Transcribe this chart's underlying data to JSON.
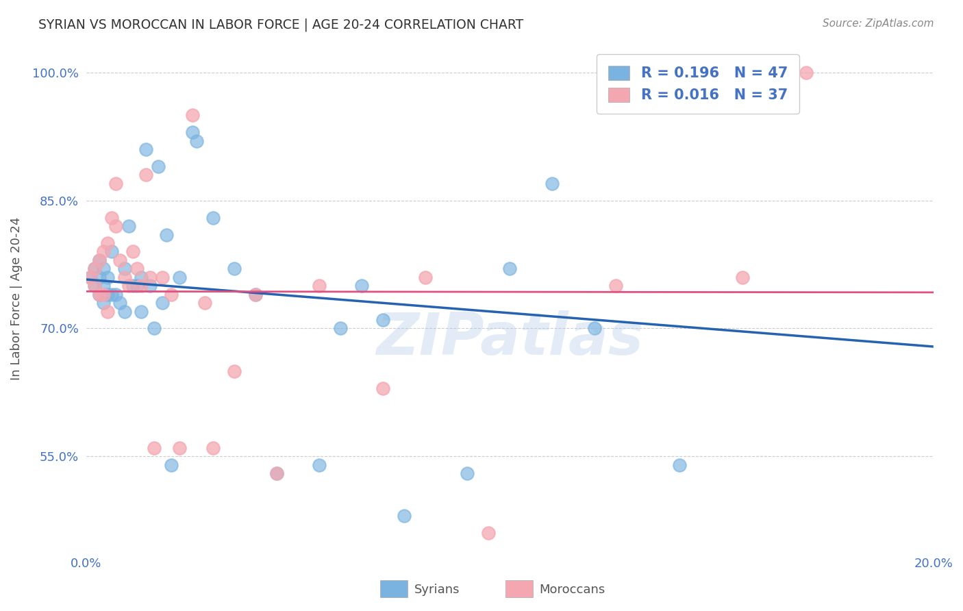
{
  "title": "SYRIAN VS MOROCCAN IN LABOR FORCE | AGE 20-24 CORRELATION CHART",
  "source": "Source: ZipAtlas.com",
  "xlabel": "",
  "ylabel": "In Labor Force | Age 20-24",
  "xlim": [
    0.0,
    0.2
  ],
  "ylim": [
    0.44,
    1.03
  ],
  "xticks": [
    0.0,
    0.04,
    0.08,
    0.12,
    0.16,
    0.2
  ],
  "xticklabels": [
    "0.0%",
    "",
    "",
    "",
    "",
    "20.0%"
  ],
  "yticks": [
    0.55,
    0.7,
    0.85,
    1.0
  ],
  "yticklabels": [
    "55.0%",
    "70.0%",
    "85.0%",
    "100.0%"
  ],
  "watermark": "ZIPatlas",
  "legend_entries": [
    {
      "label": "R = 0.196   N = 47",
      "color": "#7ab3e0"
    },
    {
      "label": "R = 0.016   N = 37",
      "color": "#f4a7b0"
    }
  ],
  "syrians_x": [
    0.001,
    0.002,
    0.002,
    0.003,
    0.003,
    0.003,
    0.004,
    0.004,
    0.004,
    0.005,
    0.005,
    0.006,
    0.006,
    0.007,
    0.008,
    0.009,
    0.009,
    0.01,
    0.011,
    0.012,
    0.013,
    0.013,
    0.014,
    0.015,
    0.016,
    0.017,
    0.018,
    0.019,
    0.02,
    0.022,
    0.025,
    0.026,
    0.03,
    0.035,
    0.04,
    0.045,
    0.055,
    0.06,
    0.065,
    0.07,
    0.075,
    0.09,
    0.1,
    0.11,
    0.12,
    0.14,
    0.155
  ],
  "syrians_y": [
    0.76,
    0.77,
    0.75,
    0.78,
    0.76,
    0.74,
    0.77,
    0.75,
    0.73,
    0.76,
    0.74,
    0.79,
    0.74,
    0.74,
    0.73,
    0.77,
    0.72,
    0.82,
    0.75,
    0.75,
    0.76,
    0.72,
    0.91,
    0.75,
    0.7,
    0.89,
    0.73,
    0.81,
    0.54,
    0.76,
    0.93,
    0.92,
    0.83,
    0.77,
    0.74,
    0.53,
    0.54,
    0.7,
    0.75,
    0.71,
    0.48,
    0.53,
    0.77,
    0.87,
    0.7,
    0.54,
    1.0
  ],
  "moroccans_x": [
    0.001,
    0.002,
    0.002,
    0.003,
    0.003,
    0.004,
    0.004,
    0.005,
    0.005,
    0.006,
    0.007,
    0.007,
    0.008,
    0.009,
    0.01,
    0.011,
    0.012,
    0.013,
    0.014,
    0.015,
    0.016,
    0.018,
    0.02,
    0.022,
    0.025,
    0.028,
    0.03,
    0.035,
    0.04,
    0.045,
    0.055,
    0.07,
    0.08,
    0.095,
    0.125,
    0.155,
    0.17
  ],
  "moroccans_y": [
    0.76,
    0.77,
    0.75,
    0.78,
    0.74,
    0.79,
    0.74,
    0.8,
    0.72,
    0.83,
    0.87,
    0.82,
    0.78,
    0.76,
    0.75,
    0.79,
    0.77,
    0.75,
    0.88,
    0.76,
    0.56,
    0.76,
    0.74,
    0.56,
    0.95,
    0.73,
    0.56,
    0.65,
    0.74,
    0.53,
    0.75,
    0.63,
    0.76,
    0.46,
    0.75,
    0.76,
    1.0
  ],
  "syrian_color": "#7ab3e0",
  "moroccan_color": "#f4a7b0",
  "syrian_R": 0.196,
  "moroccan_R": 0.016,
  "grid_color": "#cccccc",
  "background_color": "#ffffff",
  "title_color": "#333333",
  "axis_color": "#4472c4",
  "legend_text_color": "#4472c4",
  "legend_R_color": "#333333"
}
